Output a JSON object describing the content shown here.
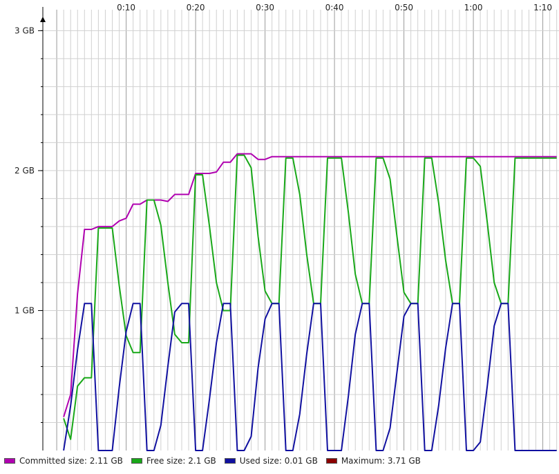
{
  "chart_data": {
    "type": "line",
    "x_tick_labels": [
      "0:10",
      "0:20",
      "0:30",
      "0:40",
      "0:50",
      "1:00",
      "1:10"
    ],
    "x_ticks_seconds": [
      600,
      1200,
      1800,
      2400,
      3000,
      3600,
      4200
    ],
    "y_tick_labels": [
      "1 GB",
      "2 GB",
      "3 GB"
    ],
    "y_ticks_gb": [
      1,
      2,
      3
    ],
    "xlim_seconds": [
      -120,
      4340
    ],
    "ylim_gb": [
      0,
      3.15
    ],
    "grid": true,
    "legend_position": "bottom",
    "x": [
      60,
      120,
      180,
      240,
      300,
      360,
      420,
      480,
      540,
      600,
      660,
      720,
      780,
      840,
      900,
      960,
      1020,
      1080,
      1140,
      1200,
      1260,
      1320,
      1380,
      1440,
      1500,
      1560,
      1620,
      1680,
      1740,
      1800,
      1860,
      1920,
      1980,
      2040,
      2100,
      2160,
      2220,
      2280,
      2340,
      2400,
      2460,
      2520,
      2580,
      2640,
      2700,
      2760,
      2820,
      2880,
      2940,
      3000,
      3060,
      3120,
      3180,
      3240,
      3300,
      3360,
      3420,
      3480,
      3540,
      3600,
      3660,
      3720,
      3780,
      3840,
      3900,
      3960,
      4020,
      4080,
      4140,
      4200,
      4260,
      4320
    ],
    "series": [
      {
        "name": "Committed size",
        "color": "#b000b0",
        "values": [
          0.24,
          0.4,
          1.12,
          1.58,
          1.58,
          1.6,
          1.6,
          1.6,
          1.64,
          1.66,
          1.76,
          1.76,
          1.79,
          1.79,
          1.79,
          1.78,
          1.83,
          1.83,
          1.83,
          1.98,
          1.98,
          1.98,
          1.99,
          2.06,
          2.06,
          2.12,
          2.12,
          2.12,
          2.08,
          2.08,
          2.1,
          2.1,
          2.1,
          2.1,
          2.1,
          2.1,
          2.1,
          2.1,
          2.1,
          2.1,
          2.1,
          2.1,
          2.1,
          2.1,
          2.1,
          2.1,
          2.1,
          2.1,
          2.1,
          2.1,
          2.1,
          2.1,
          2.1,
          2.1,
          2.1,
          2.1,
          2.1,
          2.1,
          2.1,
          2.1,
          2.1,
          2.1,
          2.1,
          2.1,
          2.1,
          2.1,
          2.1,
          2.1,
          2.1,
          2.1,
          2.1,
          2.1
        ]
      },
      {
        "name": "Free size",
        "color": "#18a818",
        "values": [
          0.23,
          0.08,
          0.46,
          0.52,
          0.52,
          1.59,
          1.59,
          1.59,
          1.18,
          0.82,
          0.7,
          0.7,
          1.79,
          1.79,
          1.61,
          1.2,
          0.83,
          0.77,
          0.77,
          1.97,
          1.97,
          1.6,
          1.2,
          1.0,
          1.0,
          2.11,
          2.11,
          2.02,
          1.53,
          1.14,
          1.05,
          1.05,
          2.09,
          2.09,
          1.83,
          1.4,
          1.05,
          1.05,
          2.09,
          2.09,
          2.09,
          1.7,
          1.26,
          1.05,
          1.05,
          2.09,
          2.09,
          1.94,
          1.53,
          1.13,
          1.05,
          1.05,
          2.09,
          2.09,
          1.77,
          1.36,
          1.05,
          1.05,
          2.09,
          2.09,
          2.03,
          1.63,
          1.2,
          1.05,
          1.05,
          2.09,
          2.09,
          2.09,
          2.09,
          2.09,
          2.09,
          2.09
        ]
      },
      {
        "name": "Used size",
        "color": "#1010a0",
        "values": [
          0.0,
          0.32,
          0.72,
          1.05,
          1.05,
          0.0,
          0.0,
          0.0,
          0.45,
          0.85,
          1.05,
          1.05,
          0.0,
          0.0,
          0.18,
          0.6,
          0.99,
          1.05,
          1.05,
          0.0,
          0.0,
          0.37,
          0.77,
          1.05,
          1.05,
          0.0,
          0.0,
          0.1,
          0.59,
          0.94,
          1.05,
          1.05,
          0.0,
          0.0,
          0.26,
          0.69,
          1.05,
          1.05,
          0.0,
          0.0,
          0.0,
          0.39,
          0.83,
          1.05,
          1.05,
          0.0,
          0.0,
          0.16,
          0.56,
          0.96,
          1.05,
          1.05,
          0.0,
          0.0,
          0.32,
          0.73,
          1.05,
          1.05,
          0.0,
          0.0,
          0.06,
          0.46,
          0.89,
          1.05,
          1.05,
          0.0,
          0.0,
          0.0,
          0.0,
          0.0,
          0.0,
          0.0
        ]
      }
    ],
    "legend": [
      {
        "label": "Committed size:",
        "value": "2.11 GB",
        "color": "#b000b0"
      },
      {
        "label": "Free size:",
        "value": "2.1 GB",
        "color": "#18a818"
      },
      {
        "label": "Used size:",
        "value": "0.01 GB",
        "color": "#1010a0"
      },
      {
        "label": "Maximum:",
        "value": "3.71 GB",
        "color": "#8b0000"
      }
    ]
  }
}
